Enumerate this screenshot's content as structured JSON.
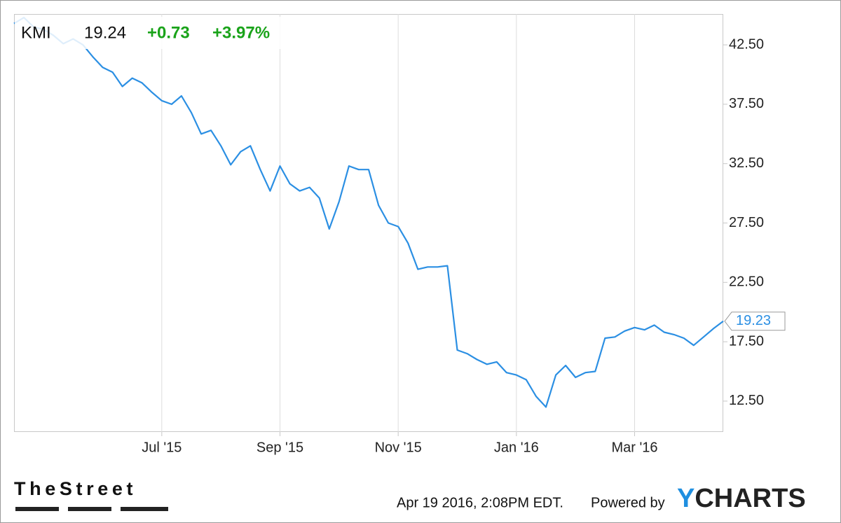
{
  "header": {
    "ticker": "KMI",
    "price": 19.24,
    "change": "+0.73",
    "change_pct": "+3.97%"
  },
  "chart_data": {
    "type": "line",
    "categories": [
      null,
      null,
      null,
      null,
      null,
      null,
      null,
      null,
      null,
      null,
      null,
      null,
      null,
      null,
      null,
      "Jul '15",
      null,
      null,
      null,
      null,
      null,
      null,
      null,
      null,
      null,
      null,
      null,
      "Sep '15",
      null,
      null,
      null,
      null,
      null,
      null,
      null,
      null,
      null,
      null,
      null,
      "Nov '15",
      null,
      null,
      null,
      null,
      null,
      null,
      null,
      null,
      null,
      null,
      null,
      "Jan '16",
      null,
      null,
      null,
      null,
      null,
      null,
      null,
      null,
      null,
      null,
      null,
      "Mar '16",
      null,
      null,
      null,
      null,
      null,
      null,
      null,
      null,
      null
    ],
    "series": [
      {
        "name": "KMI",
        "color": "#2b8fe3",
        "values": [
          44.3,
          44.8,
          44.0,
          43.8,
          43.3,
          42.6,
          43.0,
          42.5,
          41.5,
          40.6,
          40.2,
          39.0,
          39.7,
          39.3,
          38.5,
          37.8,
          37.5,
          38.2,
          36.8,
          35.0,
          35.3,
          34.0,
          32.4,
          33.5,
          34.0,
          32.0,
          30.2,
          32.3,
          30.8,
          30.2,
          30.5,
          29.6,
          27.0,
          29.3,
          32.3,
          32.0,
          32.0,
          29.0,
          27.5,
          27.2,
          25.8,
          23.6,
          23.8,
          23.8,
          23.9,
          16.8,
          16.5,
          16.0,
          15.6,
          15.8,
          14.9,
          14.7,
          14.3,
          12.9,
          12.0,
          14.7,
          15.5,
          14.5,
          14.9,
          15.0,
          17.8,
          17.9,
          18.4,
          18.7,
          18.5,
          18.9,
          18.3,
          18.1,
          17.8,
          17.2,
          17.9,
          18.6,
          19.23
        ]
      }
    ],
    "ylim": [
      9.9,
      45.1
    ],
    "yticks": [
      {
        "value": 12.5,
        "label": "12.50"
      },
      {
        "value": 17.5,
        "label": "17.50"
      },
      {
        "value": 22.5,
        "label": "22.50"
      },
      {
        "value": 27.5,
        "label": "27.50"
      },
      {
        "value": 32.5,
        "label": "32.50"
      },
      {
        "value": 37.5,
        "label": "37.50"
      },
      {
        "value": 42.5,
        "label": "42.50"
      }
    ],
    "grid": true
  },
  "footer": {
    "source": "TheStreet",
    "timestamp": "Apr 19 2016, 2:08PM EDT.",
    "powered_by": "Powered by",
    "brand": "YCHARTS"
  }
}
